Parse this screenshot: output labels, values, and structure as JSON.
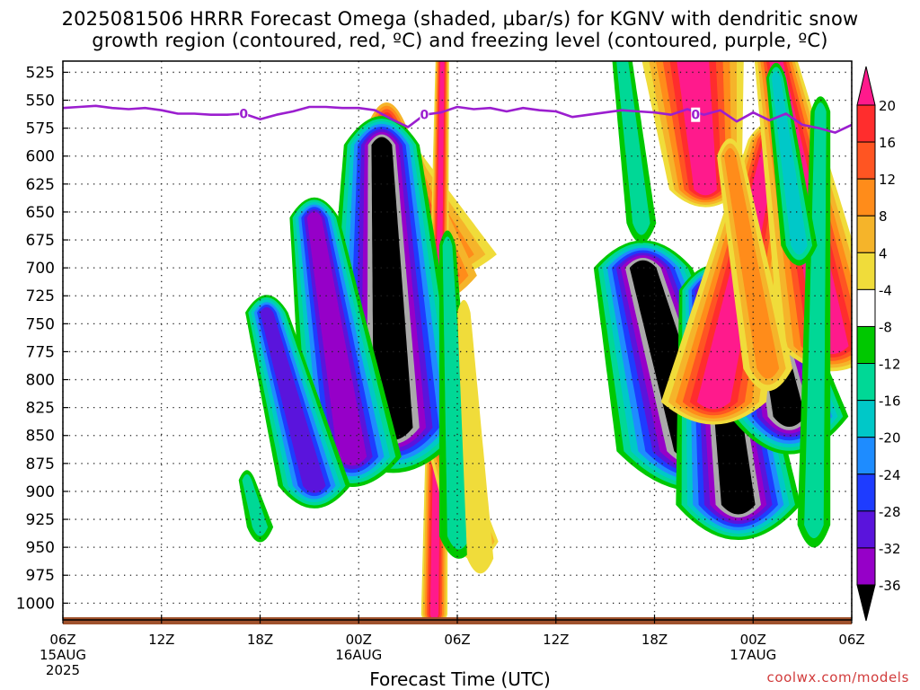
{
  "header": {
    "title_line1": "2025081506 HRRR Forecast Omega (shaded, µbar/s) for KGNV with dendritic snow",
    "title_line2": "growth region (contoured, red, ºC) and freezing level (contoured, purple, ºC)"
  },
  "footer": {
    "xaxis_title": "Forecast Time (UTC)",
    "credit": "coolwx.com/models"
  },
  "chart_data": {
    "type": "heatmap",
    "title": "2025081506 HRRR Forecast Omega (shaded, µbar/s) for KGNV with dendritic snow growth region (contoured, red, ºC) and freezing level (contoured, purple, ºC)",
    "xlabel": "Forecast Time (UTC)",
    "ylabel": "",
    "x_range_hours": [
      0,
      48
    ],
    "y_range_mb": [
      515,
      1015
    ],
    "y_inverted": true,
    "grid": true,
    "y_ticks": [
      525,
      550,
      575,
      600,
      625,
      650,
      675,
      700,
      725,
      750,
      775,
      800,
      825,
      850,
      875,
      900,
      925,
      950,
      975,
      1000
    ],
    "x_ticks": [
      {
        "hour": 0,
        "lines": [
          "06Z",
          "15AUG",
          "2025"
        ]
      },
      {
        "hour": 6,
        "lines": [
          "12Z"
        ]
      },
      {
        "hour": 12,
        "lines": [
          "18Z"
        ]
      },
      {
        "hour": 18,
        "lines": [
          "00Z",
          "16AUG"
        ]
      },
      {
        "hour": 24,
        "lines": [
          "06Z"
        ]
      },
      {
        "hour": 30,
        "lines": [
          "12Z"
        ]
      },
      {
        "hour": 36,
        "lines": [
          "18Z"
        ]
      },
      {
        "hour": 42,
        "lines": [
          "00Z",
          "17AUG"
        ]
      },
      {
        "hour": 48,
        "lines": [
          "06Z"
        ]
      }
    ],
    "colorbar": {
      "labels": [
        "20",
        "16",
        "12",
        "8",
        "4",
        "-4",
        "-8",
        "-12",
        "-16",
        "-20",
        "-24",
        "-28",
        "-32",
        "-36"
      ],
      "colors": [
        "#ff1a8c",
        "#ff2d2d",
        "#ff5522",
        "#ff8c1a",
        "#f5b42a",
        "#f0dc3a",
        "#ffffff",
        "#00c800",
        "#00d896",
        "#00c8c8",
        "#1e8cff",
        "#1e3cff",
        "#5a14dc",
        "#9600c8",
        "#aaaaaa",
        "#000000"
      ]
    },
    "freezing_level": {
      "label": "0",
      "color": "#9b1ecf",
      "points": [
        [
          0,
          557
        ],
        [
          1,
          556
        ],
        [
          2,
          555
        ],
        [
          3,
          557
        ],
        [
          4,
          558
        ],
        [
          5,
          557
        ],
        [
          6,
          559
        ],
        [
          7,
          562
        ],
        [
          8,
          562
        ],
        [
          9,
          563
        ],
        [
          10,
          563
        ],
        [
          11,
          562
        ],
        [
          12,
          567
        ],
        [
          13,
          563
        ],
        [
          14,
          560
        ],
        [
          15,
          556
        ],
        [
          16,
          556
        ],
        [
          17,
          557
        ],
        [
          18,
          557
        ],
        [
          19,
          559
        ],
        [
          20,
          567
        ],
        [
          21,
          574
        ],
        [
          22,
          563
        ],
        [
          23,
          561
        ],
        [
          24,
          556
        ],
        [
          25,
          558
        ],
        [
          26,
          557
        ],
        [
          27,
          560
        ],
        [
          28,
          557
        ],
        [
          29,
          559
        ],
        [
          30,
          560
        ],
        [
          31,
          565
        ],
        [
          32,
          563
        ],
        [
          33,
          561
        ],
        [
          34,
          559
        ],
        [
          35,
          560
        ],
        [
          36,
          561
        ],
        [
          37,
          563
        ],
        [
          38,
          558
        ],
        [
          39,
          563
        ],
        [
          40,
          559
        ],
        [
          41,
          569
        ],
        [
          42,
          561
        ],
        [
          43,
          568
        ],
        [
          44,
          562
        ],
        [
          45,
          572
        ],
        [
          46,
          575
        ],
        [
          47,
          579
        ],
        [
          48,
          572
        ]
      ],
      "contour_labels": [
        [
          11,
          562
        ],
        [
          22,
          563
        ],
        [
          38.5,
          563
        ]
      ]
    },
    "features": [
      {
        "kind": "up",
        "x": [
          0,
          48
        ],
        "levels": [
          5,
          4,
          3,
          2,
          1
        ],
        "t": [
          22.2,
          19.8
        ],
        "p": [
          688,
          590
        ],
        "r": [
          4.2,
          1.6
        ],
        "w": [
          0.8,
          0.8
        ],
        "h": [
          110,
          90
        ]
      },
      {
        "kind": "up",
        "levels": [
          4,
          3,
          2,
          1,
          0
        ],
        "t": [
          22.0,
          19.7
        ],
        "p": [
          707,
          570
        ],
        "r": [
          3.2,
          1.1
        ],
        "w": [
          0.7,
          0.6
        ],
        "h": [
          122,
          80
        ]
      },
      {
        "kind": "up",
        "levels": [
          5,
          4,
          3,
          2,
          1,
          0
        ],
        "t": [
          22.6,
          23.1
        ],
        "p": [
          1010,
          500
        ],
        "r": [
          0.8,
          0.4
        ],
        "w": [
          0.7,
          0.5
        ],
        "h": [
          90,
          70
        ]
      },
      {
        "kind": "up",
        "levels": [
          5,
          4,
          3,
          2,
          1
        ],
        "t": [
          25.1,
          20.7
        ],
        "p": [
          945,
          745
        ],
        "r": [
          1.4,
          0.6
        ],
        "w": [
          0.7,
          0.5
        ],
        "h": [
          75,
          55
        ]
      },
      {
        "kind": "down",
        "levels": [
          7,
          8,
          9,
          10,
          11,
          12,
          13,
          14,
          15
        ],
        "t": [
          20.1,
          19.4
        ],
        "p": [
          843,
          590
        ],
        "r": [
          4.4,
          2.3
        ],
        "w": [
          1.5,
          0.9
        ],
        "h": [
          180,
          115
        ]
      },
      {
        "kind": "down",
        "levels": [
          7,
          8,
          9,
          10,
          11,
          12,
          13
        ],
        "t": [
          17.6,
          15.3
        ],
        "p": [
          869,
          655
        ],
        "r": [
          3.0,
          1.5
        ],
        "w": [
          1.3,
          0.9
        ],
        "h": [
          120,
          80
        ]
      },
      {
        "kind": "down",
        "levels": [
          7,
          8,
          9,
          10,
          11,
          12
        ],
        "t": [
          15.3,
          12.4
        ],
        "p": [
          895,
          740
        ],
        "r": [
          2.2,
          1.3
        ],
        "w": [
          0.9,
          0.8
        ],
        "h": [
          90,
          70
        ]
      },
      {
        "kind": "down",
        "levels": [
          7,
          8
        ],
        "t": [
          12.0,
          11.2
        ],
        "p": [
          932,
          890
        ],
        "r": [
          0.8,
          0.5
        ],
        "w": [
          0.5,
          0.4
        ],
        "h": [
          60,
          40
        ]
      },
      {
        "kind": "down",
        "levels": [
          7,
          8
        ],
        "t": [
          24.1,
          23.4
        ],
        "p": [
          940,
          680
        ],
        "r": [
          1.2,
          0.5
        ],
        "w": [
          0.6,
          0.5
        ],
        "h": [
          90,
          60
        ]
      },
      {
        "kind": "up",
        "levels": [
          5
        ],
        "t": [
          25.4,
          24.4
        ],
        "p": [
          960,
          740
        ],
        "r": [
          0.8,
          0.4
        ],
        "w": [
          0.6,
          0.5
        ],
        "h": [
          60,
          50
        ]
      },
      {
        "kind": "down",
        "levels": [
          7,
          8,
          9,
          10,
          11,
          12,
          13,
          14,
          15
        ],
        "t": [
          38.5,
          35.3
        ],
        "p": [
          864,
          700
        ],
        "r": [
          4.8,
          3.0
        ],
        "w": [
          1.7,
          1.2
        ],
        "h": [
          160,
          110
        ]
      },
      {
        "kind": "down",
        "levels": [
          7,
          8,
          9,
          10,
          11,
          12,
          13,
          14,
          15
        ],
        "t": [
          41.1,
          39.6
        ],
        "p": [
          912,
          720
        ],
        "r": [
          3.8,
          2.1
        ],
        "w": [
          1.3,
          1.0
        ],
        "h": [
          140,
          100
        ]
      },
      {
        "kind": "down",
        "levels": [
          7,
          8,
          9,
          10,
          11,
          12,
          13,
          14,
          15
        ],
        "t": [
          44.2,
          42.4
        ],
        "p": [
          833,
          706
        ],
        "r": [
          3.6,
          1.8
        ],
        "w": [
          1.1,
          0.8
        ],
        "h": [
          150,
          100
        ]
      },
      {
        "kind": "up",
        "levels": [
          5,
          4,
          3,
          2,
          1,
          0
        ],
        "t": [
          39.6,
          43.1
        ],
        "p": [
          820,
          585
        ],
        "r": [
          3.2,
          1.4
        ],
        "w": [
          0.9,
          0.8
        ],
        "h": [
          90,
          70
        ]
      },
      {
        "kind": "up",
        "levels": [
          5,
          4,
          3,
          2,
          1,
          0
        ],
        "t": [
          46.8,
          43.2
        ],
        "p": [
          770,
          500
        ],
        "r": [
          3.2,
          1.2
        ],
        "w": [
          0.9,
          0.8
        ],
        "h": [
          100,
          80
        ]
      },
      {
        "kind": "up",
        "levels": [
          5,
          4,
          3,
          2,
          1,
          0
        ],
        "t": [
          37.9,
          39.1
        ],
        "p": [
          450,
          630
        ],
        "r": [
          3.6,
          2.2
        ],
        "w": [
          1.0,
          0.9
        ],
        "h": [
          90,
          70
        ]
      },
      {
        "kind": "up",
        "levels": [
          5,
          4,
          3
        ],
        "t": [
          42.9,
          40.6
        ],
        "p": [
          790,
          600
        ],
        "r": [
          1.5,
          0.8
        ],
        "w": [
          0.6,
          0.5
        ],
        "h": [
          90,
          70
        ]
      },
      {
        "kind": "down",
        "levels": [
          7,
          8
        ],
        "t": [
          35.2,
          34.0
        ],
        "p": [
          660,
          510
        ],
        "r": [
          0.9,
          0.6
        ],
        "w": [
          0.5,
          0.4
        ],
        "h": [
          80,
          60
        ]
      },
      {
        "kind": "down",
        "levels": [
          7,
          8
        ],
        "t": [
          45.7,
          46.1
        ],
        "p": [
          930,
          560
        ],
        "r": [
          1.0,
          0.6
        ],
        "w": [
          0.6,
          0.5
        ],
        "h": [
          90,
          60
        ]
      },
      {
        "kind": "down",
        "levels": [
          7,
          8,
          9
        ],
        "t": [
          44.8,
          43.4
        ],
        "p": [
          680,
          530
        ],
        "r": [
          1.1,
          0.6
        ],
        "w": [
          0.6,
          0.5
        ],
        "h": [
          80,
          60
        ]
      }
    ]
  }
}
